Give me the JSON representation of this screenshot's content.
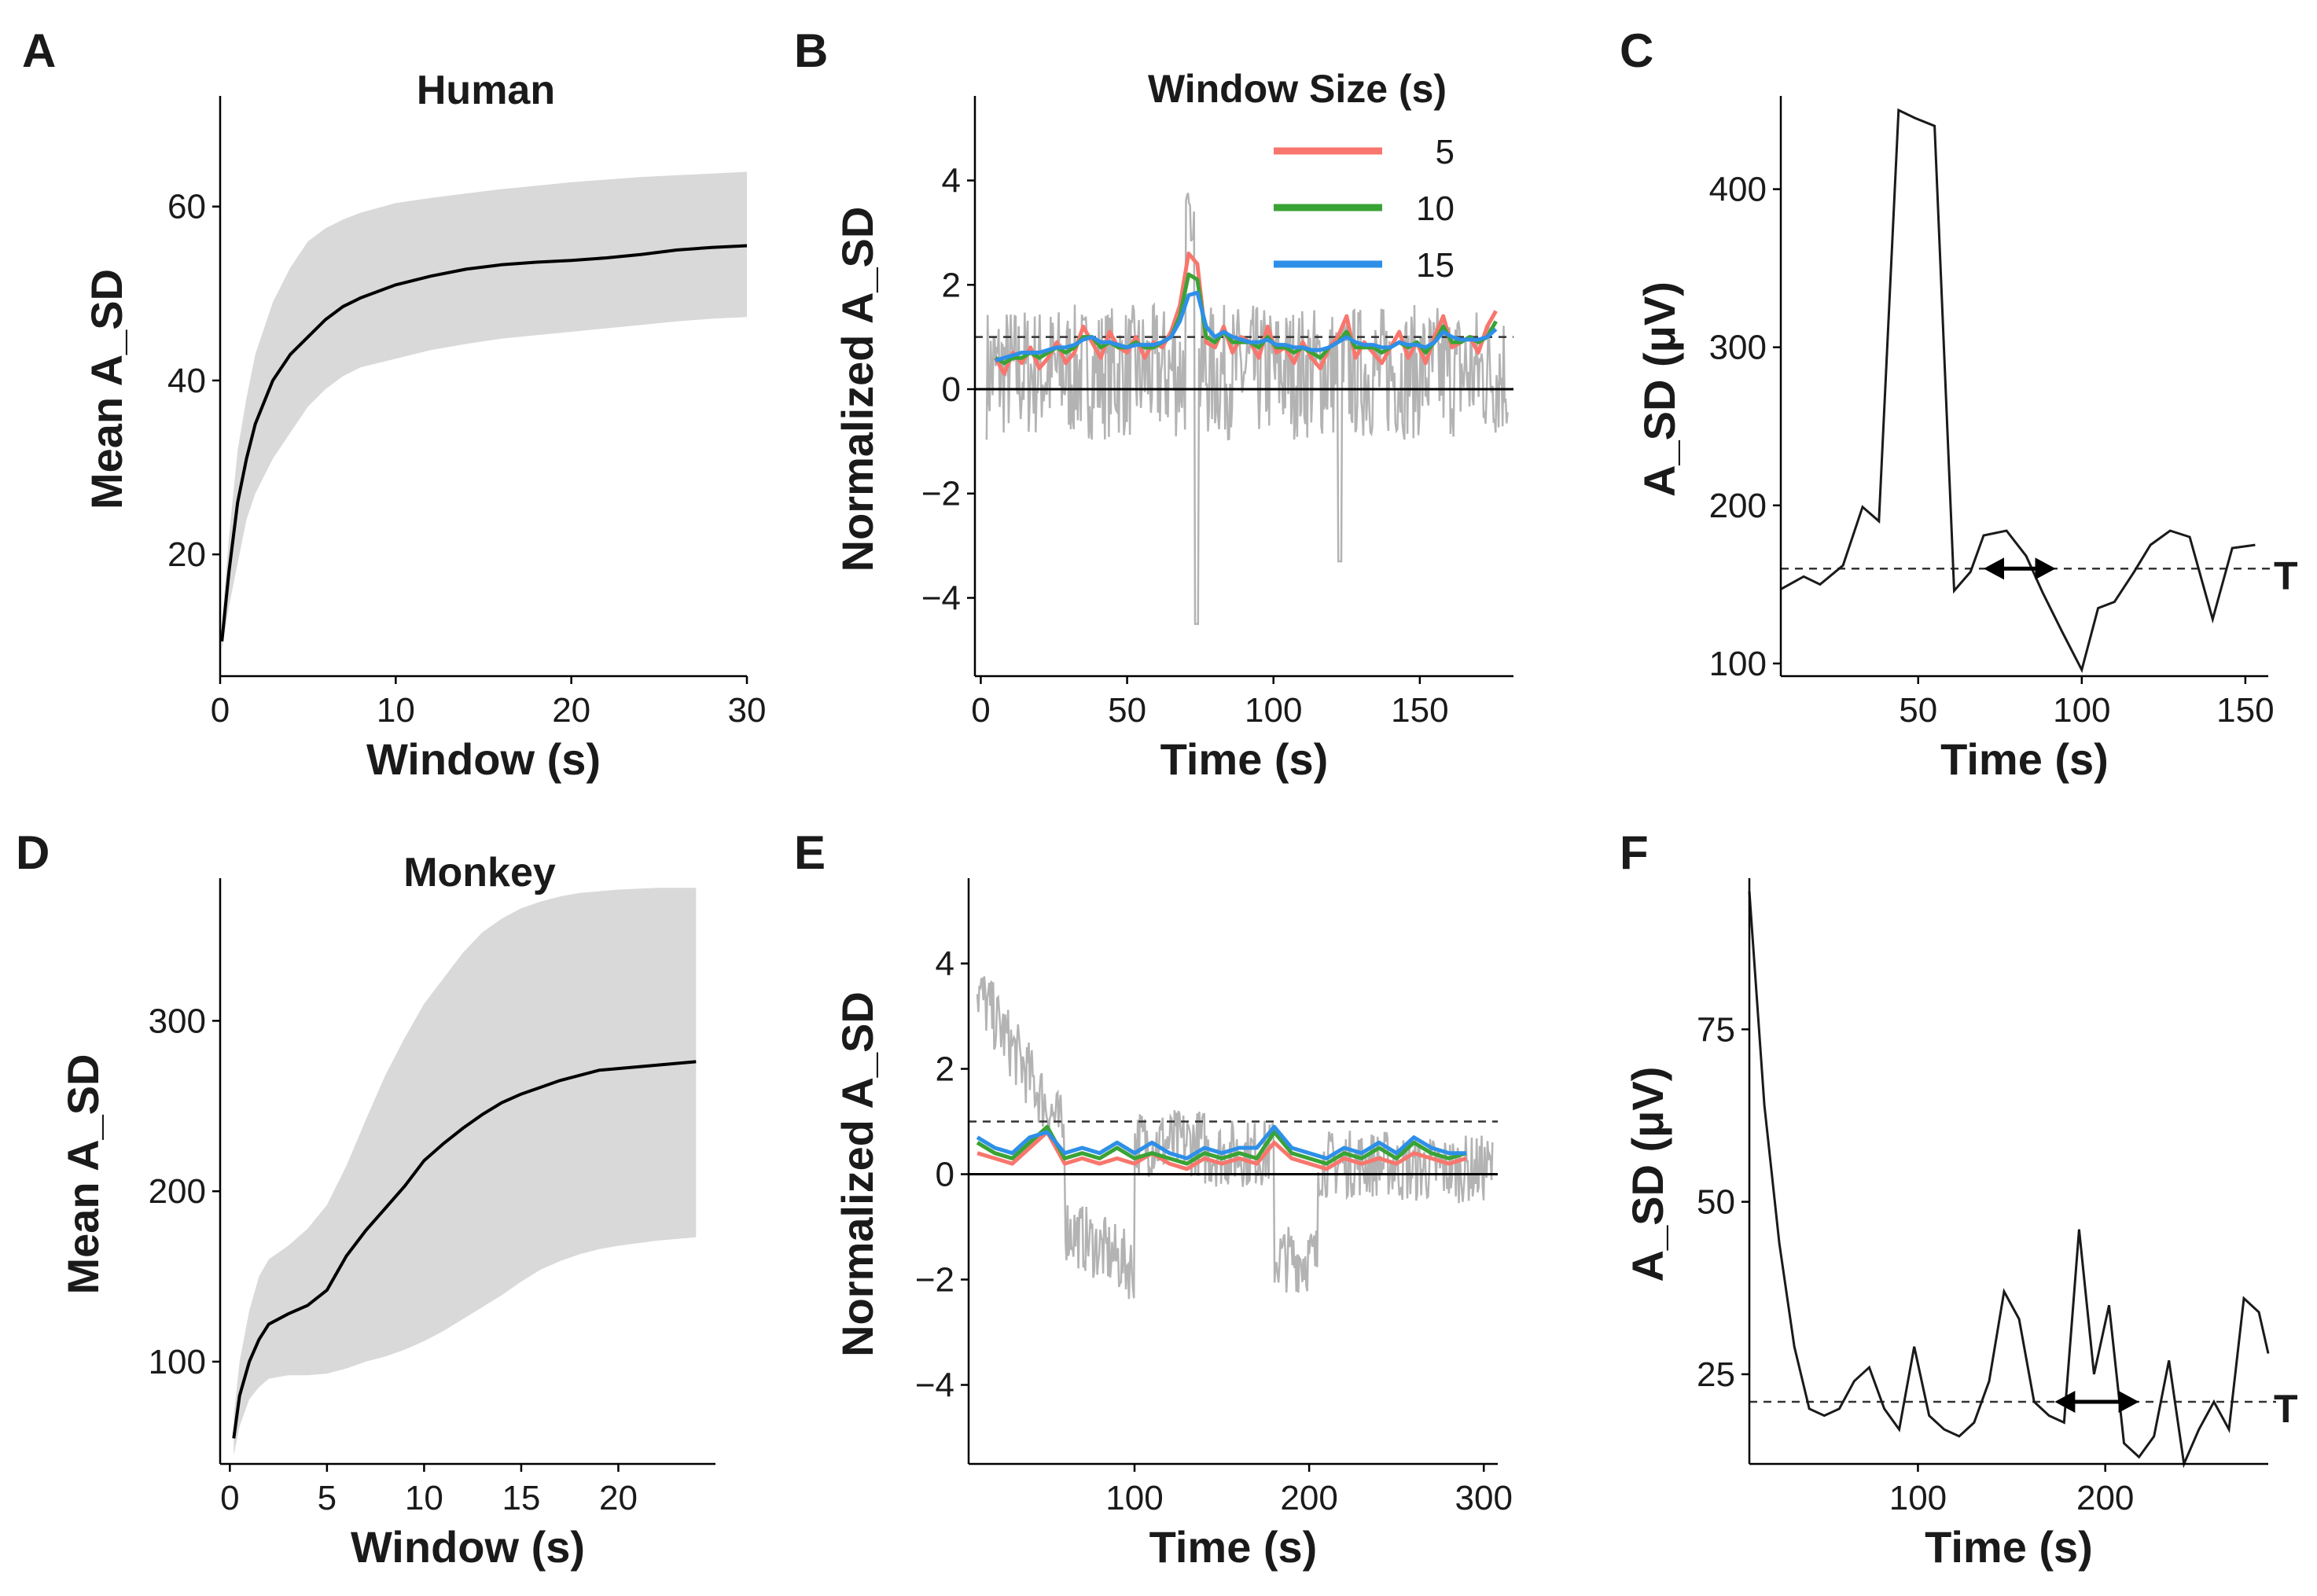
{
  "figure": {
    "background": "#ffffff"
  },
  "colors": {
    "band": "#d9d9d9",
    "mean_line": "#000000",
    "raw_trace": "#b3b3b3",
    "win5": "#f8766d",
    "win10": "#3aa335",
    "win15": "#2e8fe8",
    "trace": "#1a1a1a"
  },
  "chart_data": [
    {
      "panel": "A",
      "type": "area",
      "title": "Human",
      "xlabel": "Window (s)",
      "ylabel": "Mean A_SD",
      "xlim": [
        0,
        30
      ],
      "ylim": [
        6,
        72
      ],
      "xticks": [
        0,
        10,
        20,
        30
      ],
      "xtick_labels": [
        "0",
        "10",
        "20",
        "30"
      ],
      "yticks": [
        20,
        40,
        60
      ],
      "ytick_labels": [
        "20",
        "40",
        "60"
      ],
      "x": [
        0.1,
        0.5,
        1,
        1.5,
        2,
        3,
        4,
        5,
        6,
        7,
        8,
        10,
        12,
        14,
        16,
        18,
        20,
        22,
        24,
        26,
        28,
        30
      ],
      "mean": [
        10,
        18,
        26,
        31,
        35,
        40,
        43,
        45,
        47,
        48.5,
        49.5,
        51,
        52,
        52.8,
        53.3,
        53.6,
        53.8,
        54.1,
        54.5,
        55,
        55.3,
        55.5
      ],
      "lower": [
        9,
        14,
        19,
        24,
        27,
        31,
        34,
        37,
        39,
        40.5,
        41.5,
        42.5,
        43.5,
        44.2,
        44.8,
        45.2,
        45.6,
        46,
        46.4,
        46.8,
        47.1,
        47.3
      ],
      "upper": [
        12,
        22,
        32,
        38,
        43,
        49,
        53,
        56,
        57.5,
        58.5,
        59.3,
        60.4,
        61,
        61.5,
        62,
        62.4,
        62.8,
        63.1,
        63.4,
        63.6,
        63.8,
        64
      ]
    },
    {
      "panel": "B",
      "type": "line",
      "xlabel": "Time (s)",
      "ylabel": "Normalized A_SD",
      "xlim": [
        -2,
        182
      ],
      "ylim": [
        -5.5,
        5.5
      ],
      "xticks": [
        0,
        50,
        100,
        150
      ],
      "xtick_labels": [
        "0",
        "50",
        "100",
        "150"
      ],
      "yticks": [
        -4,
        -2,
        0,
        2,
        4
      ],
      "ytick_labels": [
        "−4",
        "−2",
        "0",
        "2",
        "4"
      ],
      "hlines": {
        "threshold": 1,
        "zero": 0
      },
      "legend": {
        "title": "Window Size (s)",
        "labels": [
          "5",
          "10",
          "15"
        ],
        "position": "top-right"
      },
      "x": [
        5,
        8,
        11,
        14,
        17,
        20,
        23,
        26,
        29,
        32,
        35,
        38,
        41,
        44,
        47,
        50,
        53,
        56,
        59,
        62,
        65,
        68,
        71,
        74,
        77,
        80,
        83,
        86,
        89,
        92,
        95,
        98,
        101,
        104,
        107,
        110,
        113,
        116,
        119,
        122,
        125,
        128,
        131,
        134,
        137,
        140,
        143,
        146,
        149,
        152,
        155,
        158,
        161,
        164,
        167,
        170,
        173,
        176
      ],
      "series": [
        {
          "name": "5",
          "values": [
            0.6,
            0.3,
            0.7,
            0.5,
            0.8,
            0.4,
            0.6,
            0.9,
            0.5,
            0.7,
            1.2,
            0.9,
            0.6,
            1.1,
            0.8,
            0.7,
            1,
            0.6,
            0.9,
            0.8,
            1.1,
            1.6,
            2.6,
            2.4,
            0.9,
            0.8,
            1.2,
            0.7,
            1,
            0.9,
            0.6,
            1.2,
            0.7,
            0.8,
            0.5,
            0.9,
            0.6,
            0.4,
            0.8,
            1,
            1.4,
            0.6,
            0.9,
            0.7,
            0.5,
            0.8,
            1.1,
            0.6,
            0.9,
            0.5,
            1,
            1.4,
            0.8,
            0.9,
            1,
            0.7,
            1.2,
            1.5
          ]
        },
        {
          "name": "10",
          "values": [
            0.6,
            0.5,
            0.6,
            0.6,
            0.7,
            0.6,
            0.7,
            0.8,
            0.7,
            0.8,
            1,
            1,
            0.8,
            0.9,
            0.8,
            0.8,
            0.9,
            0.8,
            0.8,
            0.9,
            1,
            1.4,
            2.2,
            2.1,
            1,
            0.9,
            1.1,
            0.9,
            0.9,
            0.9,
            0.8,
            1,
            0.8,
            0.8,
            0.7,
            0.8,
            0.7,
            0.6,
            0.8,
            0.9,
            1.1,
            0.8,
            0.8,
            0.8,
            0.7,
            0.8,
            0.9,
            0.8,
            0.9,
            0.7,
            0.9,
            1.2,
            0.9,
            0.9,
            1,
            0.9,
            1,
            1.3
          ]
        },
        {
          "name": "15",
          "values": [
            0.55,
            0.6,
            0.65,
            0.7,
            0.7,
            0.7,
            0.75,
            0.8,
            0.8,
            0.85,
            0.95,
            1,
            0.9,
            0.9,
            0.85,
            0.8,
            0.85,
            0.85,
            0.85,
            0.9,
            1,
            1.3,
            1.8,
            1.85,
            1.2,
            1,
            1.1,
            1,
            0.95,
            0.9,
            0.9,
            0.95,
            0.85,
            0.85,
            0.8,
            0.8,
            0.75,
            0.75,
            0.8,
            0.9,
            1,
            0.9,
            0.85,
            0.85,
            0.8,
            0.8,
            0.9,
            0.85,
            0.85,
            0.8,
            0.9,
            1.1,
            1,
            0.95,
            0.95,
            0.95,
            1,
            1.15
          ]
        }
      ]
    },
    {
      "panel": "C",
      "type": "line",
      "xlabel": "Time (s)",
      "ylabel": "A_SD (μV)",
      "xlim": [
        8,
        157
      ],
      "ylim": [
        92,
        455
      ],
      "xticks": [
        50,
        100,
        150
      ],
      "xtick_labels": [
        "50",
        "100",
        "150"
      ],
      "yticks": [
        100,
        200,
        300,
        400
      ],
      "ytick_labels": [
        "100",
        "200",
        "300",
        "400"
      ],
      "threshold": {
        "value": 160,
        "label": "T"
      },
      "interval": [
        70,
        92
      ],
      "x": [
        8,
        15,
        20,
        27,
        33,
        38,
        44,
        49,
        55,
        61,
        66,
        70,
        77,
        83,
        88,
        94,
        100,
        105,
        110,
        116,
        121,
        127,
        133,
        140,
        146,
        153
      ],
      "values": [
        147,
        155,
        150,
        162,
        199,
        190,
        450,
        445,
        440,
        146,
        158,
        181,
        184,
        168,
        145,
        120,
        96,
        135,
        139,
        158,
        175,
        184,
        180,
        128,
        173,
        175
      ]
    },
    {
      "panel": "D",
      "type": "area",
      "title": "Monkey",
      "xlabel": "Window (s)",
      "ylabel": "Mean A_SD",
      "xlim": [
        -0.5,
        25
      ],
      "ylim": [
        40,
        380
      ],
      "xticks": [
        0,
        5,
        10,
        15,
        20
      ],
      "xtick_labels": [
        "0",
        "5",
        "10",
        "15",
        "20"
      ],
      "yticks": [
        100,
        200,
        300
      ],
      "ytick_labels": [
        "100",
        "200",
        "300"
      ],
      "x": [
        0.2,
        0.5,
        1,
        1.5,
        2,
        3,
        4,
        5,
        6,
        7,
        8,
        9,
        10,
        11,
        12,
        13,
        14,
        15,
        16,
        17,
        18,
        19,
        20,
        22,
        24
      ],
      "mean": [
        55,
        80,
        100,
        113,
        122,
        128,
        133,
        142,
        162,
        177,
        190,
        203,
        218,
        228,
        237,
        245,
        252,
        257,
        261,
        265,
        268,
        271,
        272,
        274,
        276
      ],
      "lower": [
        45,
        62,
        78,
        85,
        90,
        92,
        92,
        93,
        96,
        100,
        103,
        107,
        112,
        118,
        125,
        132,
        139,
        147,
        154,
        159,
        163,
        166,
        168,
        171,
        173
      ],
      "upper": [
        68,
        100,
        130,
        150,
        160,
        168,
        178,
        192,
        215,
        242,
        268,
        290,
        310,
        325,
        340,
        352,
        360,
        366,
        370,
        373,
        375,
        376,
        377,
        378,
        378
      ]
    },
    {
      "panel": "E",
      "type": "line",
      "xlabel": "Time (s)",
      "ylabel": "Normalized A_SD",
      "xlim": [
        5,
        308
      ],
      "ylim": [
        -5.5,
        5.5
      ],
      "xticks": [
        100,
        200,
        300
      ],
      "xtick_labels": [
        "100",
        "200",
        "300"
      ],
      "yticks": [
        -4,
        -2,
        0,
        2,
        4
      ],
      "ytick_labels": [
        "−4",
        "−2",
        "0",
        "2",
        "4"
      ],
      "hlines": {
        "threshold": 1,
        "zero": 0
      },
      "x": [
        10,
        20,
        30,
        40,
        50,
        60,
        70,
        80,
        90,
        100,
        110,
        120,
        130,
        140,
        150,
        160,
        170,
        180,
        190,
        200,
        210,
        220,
        230,
        240,
        250,
        260,
        270,
        280,
        290
      ],
      "series": [
        {
          "name": "5",
          "values": [
            0.4,
            0.3,
            0.2,
            0.5,
            0.8,
            0.2,
            0.3,
            0.2,
            0.3,
            0.2,
            0.4,
            0.2,
            0.1,
            0.3,
            0.2,
            0.3,
            0.2,
            0.6,
            0.3,
            0.2,
            0.1,
            0.3,
            0.2,
            0.3,
            0.2,
            0.4,
            0.3,
            0.2,
            0.3
          ]
        },
        {
          "name": "10",
          "values": [
            0.6,
            0.4,
            0.3,
            0.6,
            0.9,
            0.3,
            0.4,
            0.3,
            0.5,
            0.3,
            0.4,
            0.3,
            0.2,
            0.4,
            0.3,
            0.4,
            0.3,
            0.8,
            0.4,
            0.3,
            0.2,
            0.4,
            0.3,
            0.5,
            0.3,
            0.6,
            0.4,
            0.3,
            0.4
          ]
        },
        {
          "name": "15",
          "values": [
            0.7,
            0.5,
            0.4,
            0.7,
            0.8,
            0.4,
            0.5,
            0.4,
            0.6,
            0.4,
            0.6,
            0.4,
            0.3,
            0.5,
            0.4,
            0.5,
            0.5,
            0.9,
            0.5,
            0.4,
            0.3,
            0.5,
            0.4,
            0.6,
            0.4,
            0.7,
            0.5,
            0.4,
            0.4
          ]
        }
      ]
    },
    {
      "panel": "F",
      "type": "line",
      "xlabel": "Time (s)",
      "ylabel": "A_SD (μV)",
      "xlim": [
        10,
        287
      ],
      "ylim": [
        12,
        96
      ],
      "xticks": [
        100,
        200
      ],
      "xtick_labels": [
        "100",
        "200"
      ],
      "yticks": [
        25,
        50,
        75
      ],
      "ytick_labels": [
        "25",
        "50",
        "75"
      ],
      "threshold": {
        "value": 21,
        "label": "T"
      },
      "interval": [
        173,
        218
      ],
      "x": [
        10,
        18,
        26,
        34,
        42,
        50,
        58,
        66,
        74,
        82,
        90,
        98,
        106,
        114,
        122,
        130,
        138,
        146,
        154,
        162,
        170,
        178,
        186,
        194,
        202,
        210,
        218,
        226,
        234,
        242,
        250,
        258,
        266,
        274,
        282,
        287
      ],
      "values": [
        95,
        64,
        44,
        29,
        20,
        19,
        20,
        24,
        26,
        20,
        17,
        29,
        19,
        17,
        16,
        18,
        24,
        37,
        33,
        21,
        19,
        18,
        46,
        25,
        35,
        15,
        13,
        16,
        27,
        12,
        17,
        21,
        17,
        36,
        34,
        28
      ]
    }
  ]
}
